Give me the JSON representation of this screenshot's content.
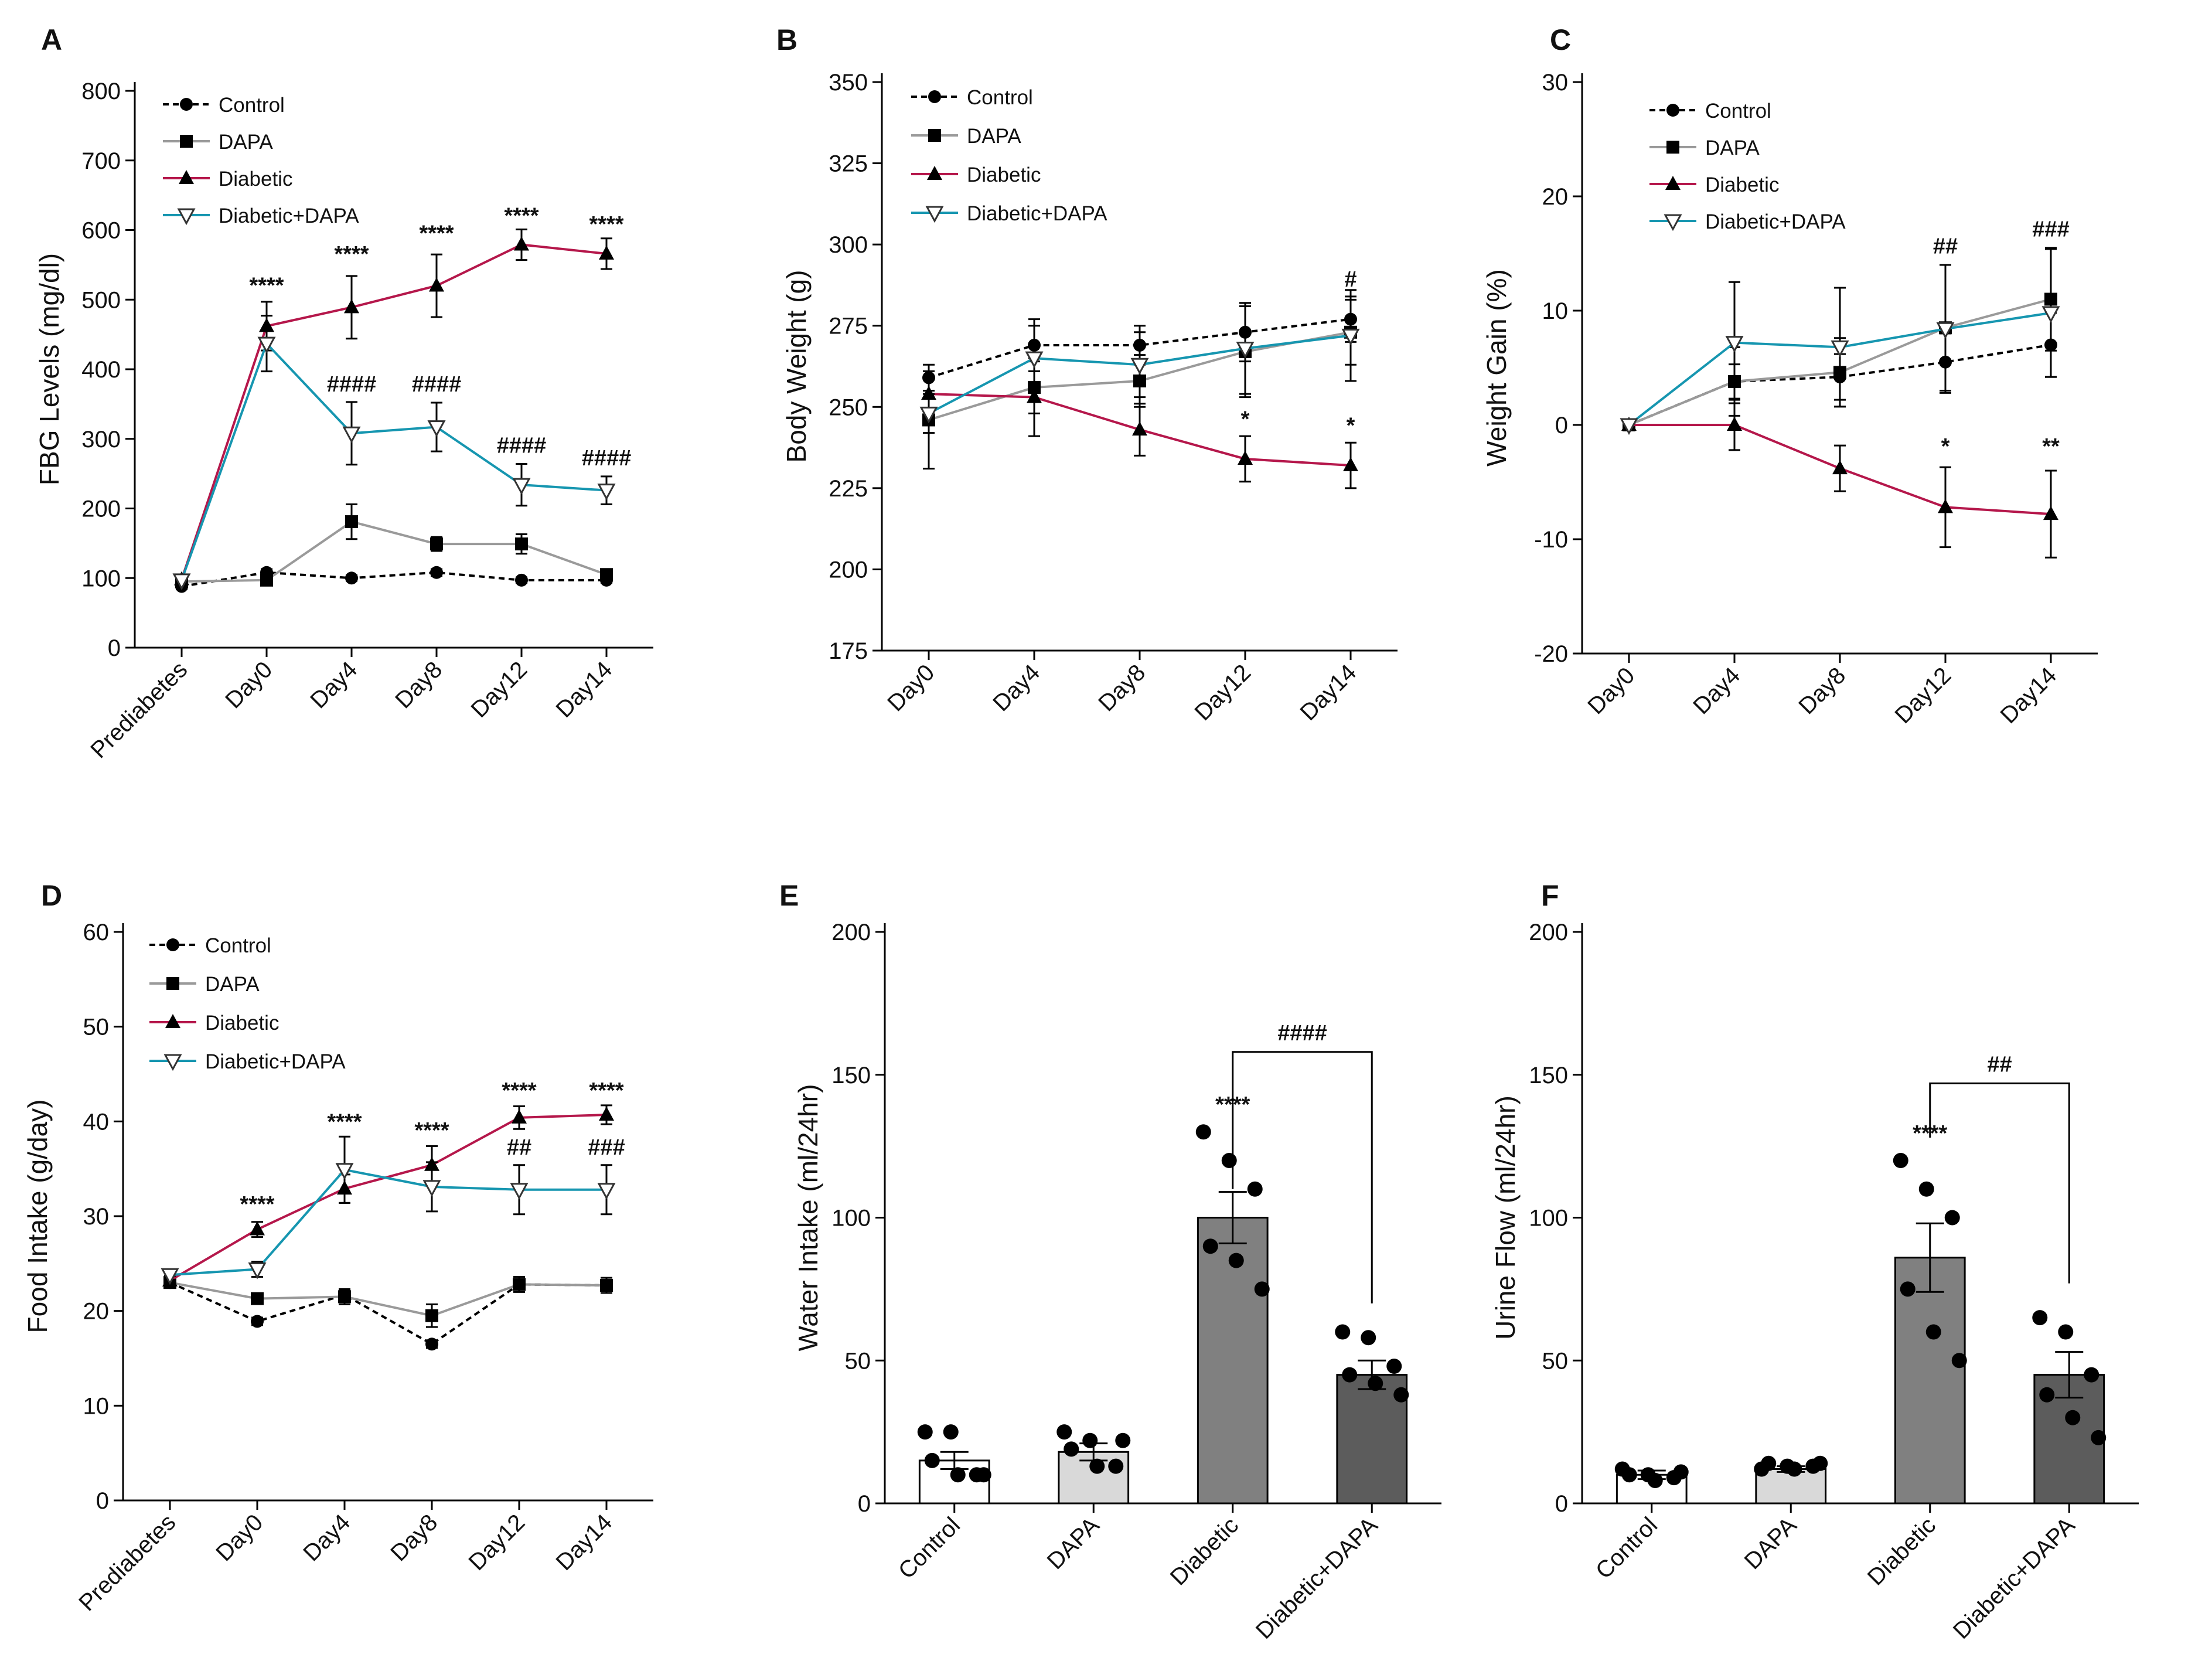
{
  "colors": {
    "control": "#000000",
    "dapa": "#9a9a9a",
    "diabetic": "#b5174b",
    "diabetic_dapa": "#1696b0",
    "bar_control": "#ffffff",
    "bar_dapa": "#d9d9d9",
    "bar_diabetic": "#808080",
    "bar_diabetic_dapa": "#5c5c5c"
  },
  "chart_data": [
    {
      "panel": "A",
      "type": "line",
      "ylabel": "FBG Levels (mg/dl)",
      "ylim": [
        0,
        800
      ],
      "yticks": [
        0,
        100,
        200,
        300,
        400,
        500,
        600,
        700,
        800
      ],
      "categories": [
        "Prediabetes",
        "Day0",
        "Day4",
        "Day8",
        "Day12",
        "Day14"
      ],
      "legend": "top-left",
      "series": [
        {
          "name": "Control",
          "marker": "circle",
          "style": "dashed",
          "color_key": "control",
          "values": [
            88,
            108,
            100,
            108,
            97,
            97
          ],
          "err": [
            4,
            5,
            4,
            5,
            4,
            4
          ]
        },
        {
          "name": "DAPA",
          "marker": "square",
          "style": "solid",
          "color_key": "dapa",
          "values": [
            95,
            97,
            181,
            149,
            149,
            105
          ],
          "err": [
            6,
            6,
            25,
            10,
            14,
            8
          ]
        },
        {
          "name": "Diabetic",
          "marker": "triangle",
          "style": "solid",
          "color_key": "diabetic",
          "values": [
            98,
            462,
            489,
            520,
            579,
            566
          ],
          "err": [
            6,
            35,
            45,
            45,
            22,
            22
          ]
        },
        {
          "name": "Diabetic+DAPA",
          "marker": "triangle-down",
          "style": "solid",
          "color_key": "diabetic_dapa",
          "values": [
            97,
            437,
            308,
            317,
            234,
            226
          ],
          "err": [
            6,
            40,
            45,
            35,
            30,
            20
          ]
        }
      ],
      "annotations": [
        {
          "cat": 1,
          "value": 510,
          "text": "****"
        },
        {
          "cat": 2,
          "value": 555,
          "text": "****"
        },
        {
          "cat": 3,
          "value": 585,
          "text": "****"
        },
        {
          "cat": 4,
          "value": 610,
          "text": "****"
        },
        {
          "cat": 5,
          "value": 598,
          "text": "****"
        },
        {
          "cat": 2,
          "value": 368,
          "text": "####"
        },
        {
          "cat": 3,
          "value": 368,
          "text": "####"
        },
        {
          "cat": 4,
          "value": 280,
          "text": "####"
        },
        {
          "cat": 5,
          "value": 262,
          "text": "####"
        }
      ]
    },
    {
      "panel": "B",
      "type": "line",
      "ylabel": "Body Weight (g)",
      "ylim": [
        175,
        350
      ],
      "yticks": [
        175,
        200,
        225,
        250,
        275,
        300,
        325,
        350
      ],
      "categories": [
        "Day0",
        "Day4",
        "Day8",
        "Day12",
        "Day14"
      ],
      "legend": "top-left",
      "series": [
        {
          "name": "Control",
          "marker": "circle",
          "style": "dashed",
          "color_key": "control",
          "values": [
            259,
            269,
            269,
            273,
            277
          ],
          "err": [
            4,
            8,
            6,
            9,
            7
          ]
        },
        {
          "name": "DAPA",
          "marker": "square",
          "style": "solid",
          "color_key": "dapa",
          "values": [
            246,
            256,
            258,
            267,
            273
          ],
          "err": [
            15,
            8,
            8,
            14,
            10
          ]
        },
        {
          "name": "Diabetic",
          "marker": "triangle",
          "style": "solid",
          "color_key": "diabetic",
          "values": [
            254,
            253,
            243,
            234,
            232
          ],
          "err": [
            5,
            12,
            8,
            7,
            7
          ]
        },
        {
          "name": "Diabetic+DAPA",
          "marker": "triangle-down",
          "style": "solid",
          "color_key": "diabetic_dapa",
          "values": [
            248,
            265,
            263,
            268,
            272
          ],
          "err": [
            6,
            10,
            10,
            14,
            14
          ]
        }
      ],
      "annotations": [
        {
          "cat": 3,
          "value": 244,
          "text": "*"
        },
        {
          "cat": 4,
          "value": 242,
          "text": "*"
        },
        {
          "cat": 4,
          "value": 287,
          "text": "#"
        }
      ]
    },
    {
      "panel": "C",
      "type": "line",
      "ylabel": "Weight Gain (%)",
      "ylim": [
        -20,
        30
      ],
      "yticks": [
        -20,
        -10,
        0,
        10,
        20,
        30
      ],
      "categories": [
        "Day0",
        "Day4",
        "Day8",
        "Day12",
        "Day14"
      ],
      "legend": "top-left",
      "series": [
        {
          "name": "Control",
          "marker": "circle",
          "style": "dashed",
          "color_key": "control",
          "values": [
            0,
            3.8,
            4.2,
            5.5,
            7.0
          ],
          "err": [
            0,
            1.5,
            2.0,
            2.5,
            2.8
          ]
        },
        {
          "name": "DAPA",
          "marker": "square",
          "style": "solid",
          "color_key": "dapa",
          "values": [
            0,
            3.8,
            4.6,
            8.5,
            11.0
          ],
          "err": [
            0,
            3.0,
            3.0,
            5.5,
            4.5
          ]
        },
        {
          "name": "Diabetic",
          "marker": "triangle",
          "style": "solid",
          "color_key": "diabetic",
          "values": [
            0,
            0,
            -3.8,
            -7.2,
            -7.8
          ],
          "err": [
            0,
            2.2,
            2.0,
            3.5,
            3.8
          ]
        },
        {
          "name": "Diabetic+DAPA",
          "marker": "triangle-down",
          "style": "solid",
          "color_key": "diabetic_dapa",
          "values": [
            0,
            7.2,
            6.8,
            8.4,
            9.8
          ],
          "err": [
            0,
            5.3,
            5.2,
            5.6,
            5.6
          ]
        }
      ],
      "annotations": [
        {
          "cat": 3,
          "value": -2.5,
          "text": "*"
        },
        {
          "cat": 4,
          "value": -2.5,
          "text": "**"
        },
        {
          "cat": 3,
          "value": 15.0,
          "text": "##"
        },
        {
          "cat": 4,
          "value": 16.5,
          "text": "###"
        }
      ]
    },
    {
      "panel": "D",
      "type": "line",
      "ylabel": "Food Intake (g/day)",
      "ylim": [
        0,
        60
      ],
      "yticks": [
        0,
        10,
        20,
        30,
        40,
        50,
        60
      ],
      "categories": [
        "Prediabetes",
        "Day0",
        "Day4",
        "Day8",
        "Day12",
        "Day14"
      ],
      "legend": "top-left",
      "series": [
        {
          "name": "Control",
          "marker": "circle",
          "style": "dashed",
          "color_key": "control",
          "values": [
            23.0,
            18.9,
            21.7,
            16.5,
            22.8,
            22.7
          ],
          "err": [
            0.5,
            0.4,
            0.5,
            0.4,
            0.5,
            0.5
          ]
        },
        {
          "name": "DAPA",
          "marker": "square",
          "style": "solid",
          "color_key": "dapa",
          "values": [
            23.0,
            21.3,
            21.5,
            19.5,
            22.8,
            22.7
          ],
          "err": [
            0.5,
            0.5,
            0.8,
            1.2,
            0.8,
            0.8
          ]
        },
        {
          "name": "Diabetic",
          "marker": "triangle",
          "style": "solid",
          "color_key": "diabetic",
          "values": [
            23.2,
            28.6,
            32.9,
            35.4,
            40.4,
            40.7
          ],
          "err": [
            0.5,
            0.8,
            1.5,
            2.0,
            1.2,
            1.0
          ]
        },
        {
          "name": "Diabetic+DAPA",
          "marker": "triangle-down",
          "style": "solid",
          "color_key": "diabetic_dapa",
          "values": [
            23.8,
            24.4,
            34.9,
            33.1,
            32.8,
            32.8
          ],
          "err": [
            0.5,
            0.8,
            3.5,
            2.6,
            2.6,
            2.6
          ]
        }
      ],
      "annotations": [
        {
          "cat": 1,
          "value": 30.5,
          "text": "****"
        },
        {
          "cat": 2,
          "value": 39.2,
          "text": "****"
        },
        {
          "cat": 3,
          "value": 38.3,
          "text": "****"
        },
        {
          "cat": 4,
          "value": 42.5,
          "text": "****"
        },
        {
          "cat": 5,
          "value": 42.5,
          "text": "****"
        },
        {
          "cat": 4,
          "value": 36.5,
          "text": "##"
        },
        {
          "cat": 5,
          "value": 36.5,
          "text": "###"
        }
      ]
    },
    {
      "panel": "E",
      "type": "bar",
      "ylabel": "Water Intake (ml/24hr)",
      "ylim": [
        0,
        200
      ],
      "yticks": [
        0,
        50,
        100,
        150,
        200
      ],
      "categories": [
        "Control",
        "DAPA",
        "Diabetic",
        "Diabetic+DAPA"
      ],
      "values": [
        15,
        18,
        100,
        45
      ],
      "err": [
        3,
        3,
        9,
        5
      ],
      "fill_keys": [
        "bar_control",
        "bar_dapa",
        "bar_diabetic",
        "bar_diabetic_dapa"
      ],
      "points": [
        [
          25,
          25,
          10,
          15,
          10,
          10
        ],
        [
          25,
          22,
          13,
          19,
          13,
          22
        ],
        [
          130,
          120,
          110,
          90,
          85,
          75
        ],
        [
          60,
          58,
          48,
          45,
          42,
          38
        ]
      ],
      "annotations": [
        {
          "cat": 2,
          "value": 137,
          "text": "****"
        }
      ],
      "bracket": {
        "from": 2,
        "to": 3,
        "value": 158,
        "drop_to": [
          110,
          70
        ],
        "text": "####"
      }
    },
    {
      "panel": "F",
      "type": "bar",
      "ylabel": "Urine Flow (ml/24hr)",
      "ylim": [
        0,
        200
      ],
      "yticks": [
        0,
        50,
        100,
        150,
        200
      ],
      "categories": [
        "Control",
        "DAPA",
        "Diabetic",
        "Diabetic+DAPA"
      ],
      "values": [
        10,
        12,
        86,
        45
      ],
      "err": [
        1.5,
        1,
        12,
        8
      ],
      "fill_keys": [
        "bar_control",
        "bar_dapa",
        "bar_diabetic",
        "bar_diabetic_dapa"
      ],
      "points": [
        [
          12,
          10,
          9,
          10,
          8,
          11
        ],
        [
          12,
          13,
          13,
          14,
          12,
          14
        ],
        [
          120,
          110,
          100,
          75,
          60,
          50
        ],
        [
          65,
          60,
          45,
          38,
          30,
          23
        ]
      ],
      "annotations": [
        {
          "cat": 2,
          "value": 127,
          "text": "****"
        }
      ],
      "bracket": {
        "from": 2,
        "to": 3,
        "value": 147,
        "drop_to": [
          128,
          77
        ],
        "text": "##"
      }
    }
  ]
}
